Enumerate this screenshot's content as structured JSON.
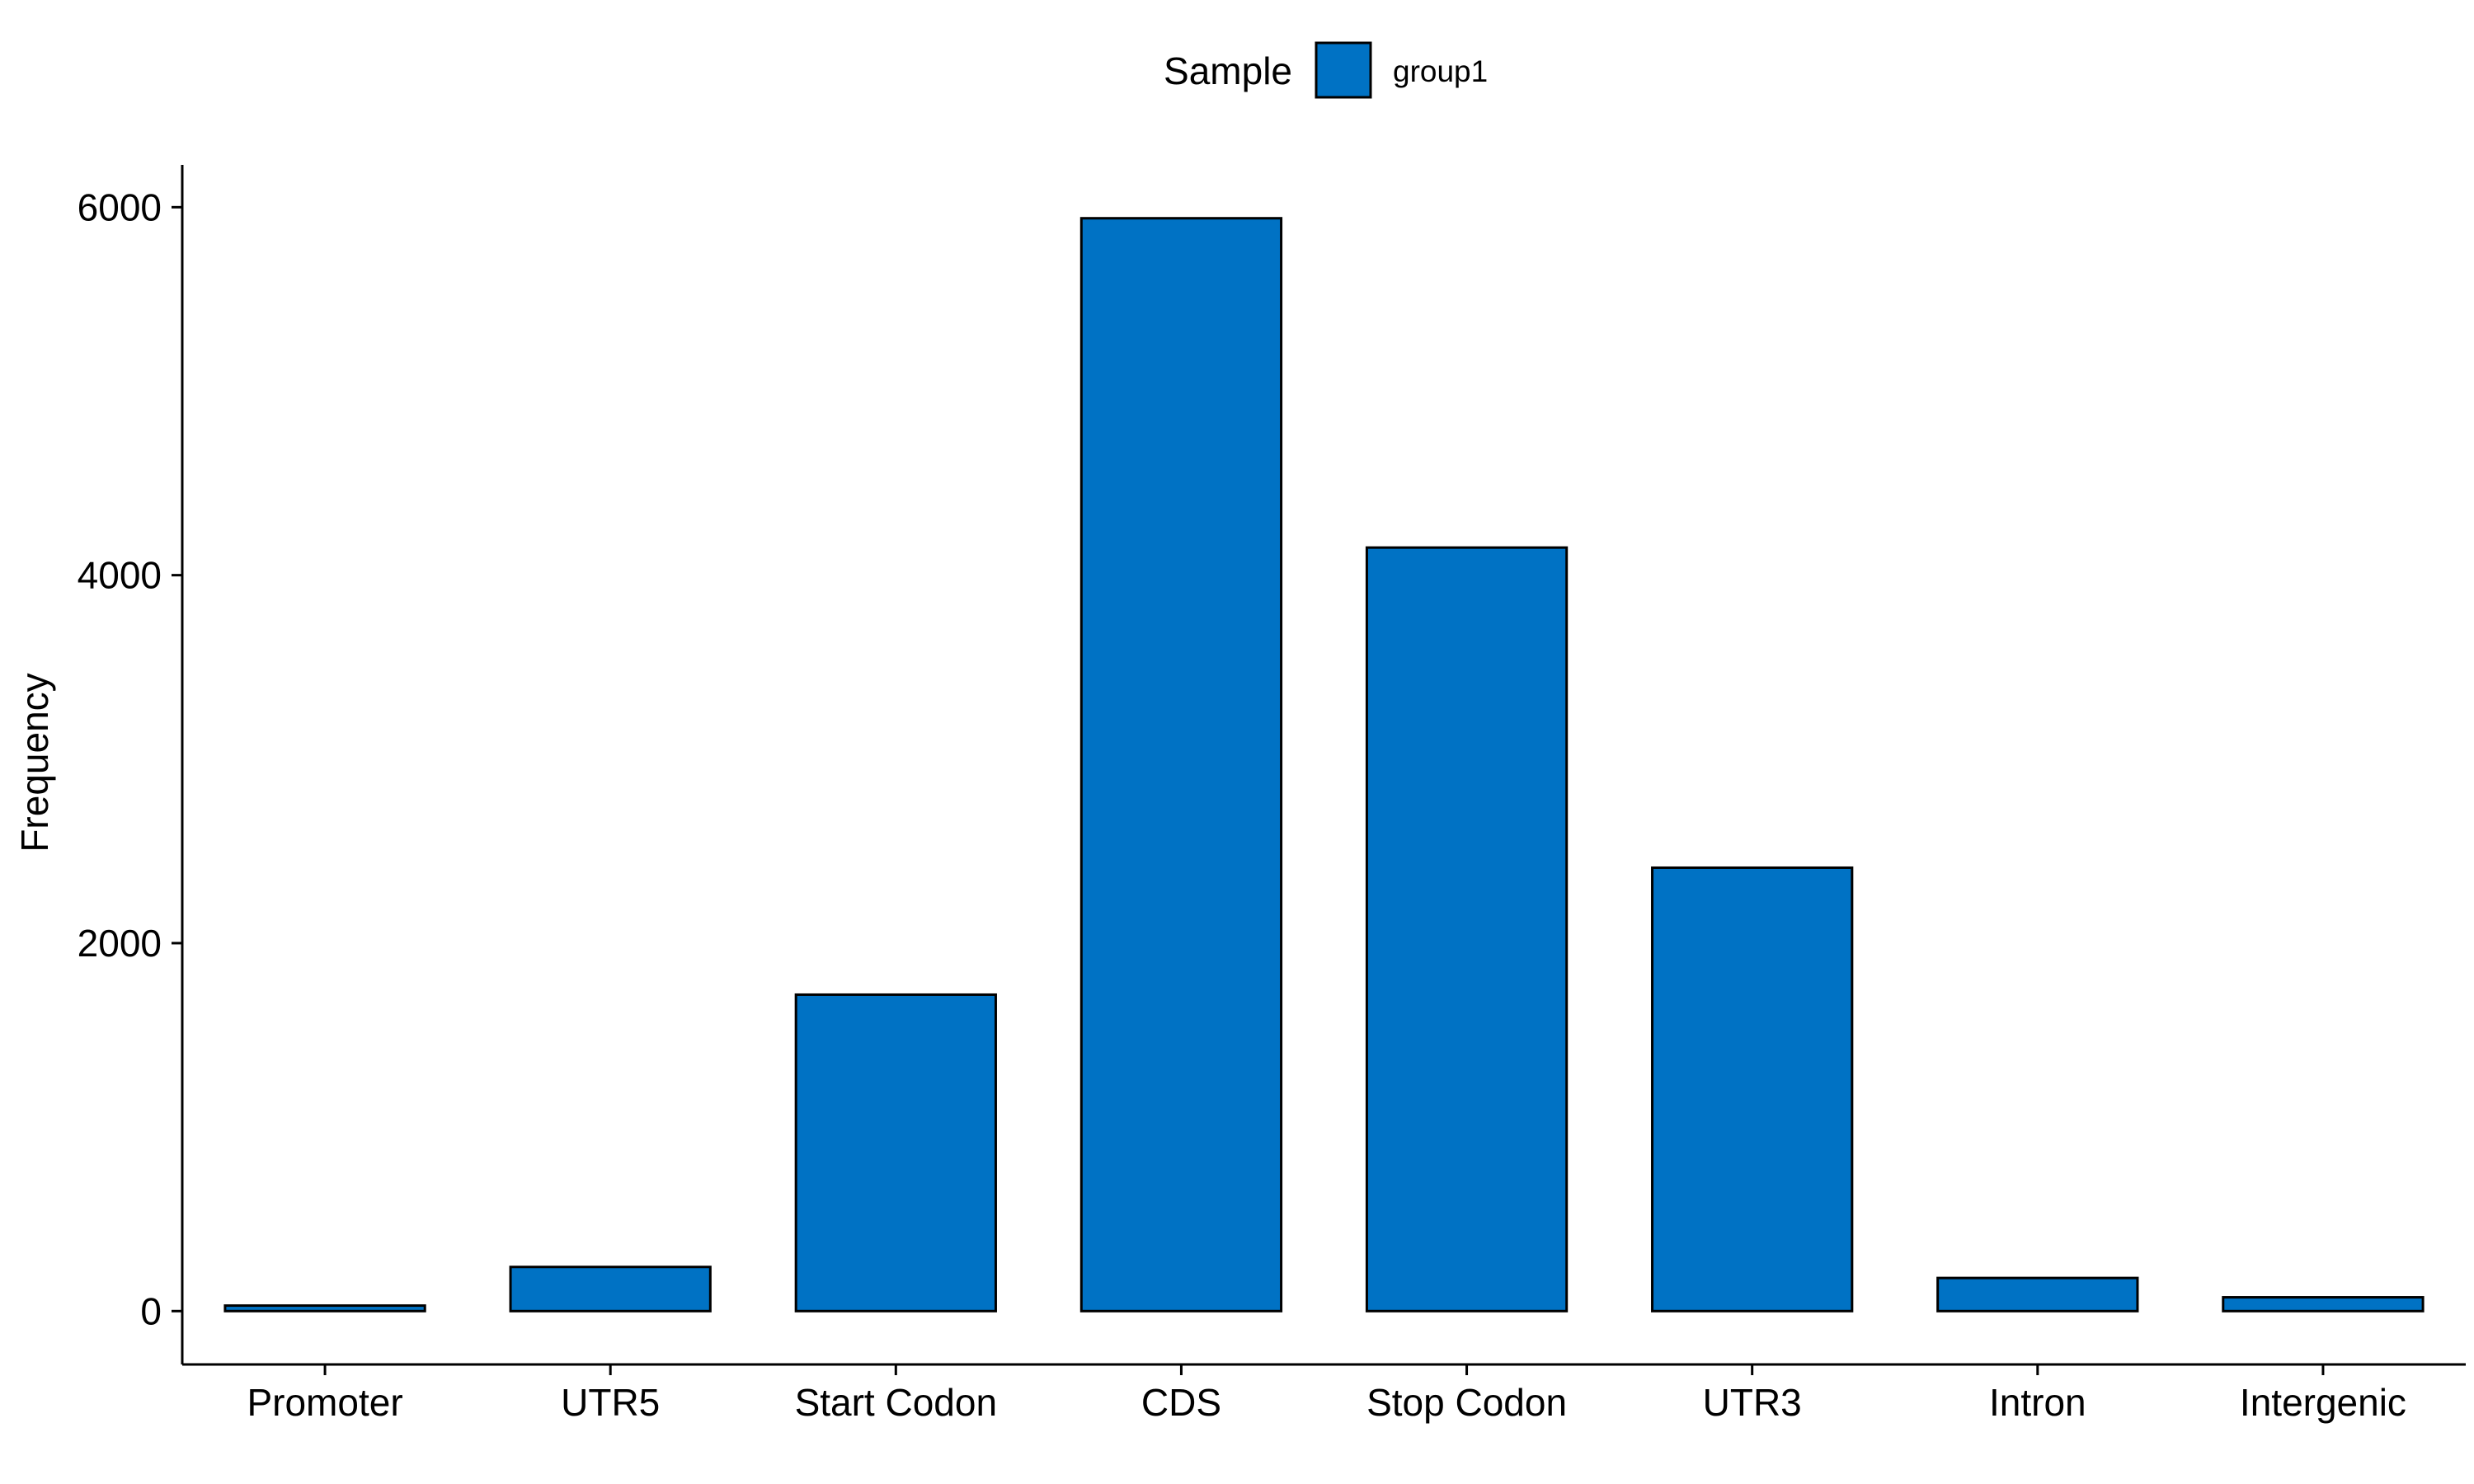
{
  "chart_data": {
    "type": "bar",
    "title": "",
    "xlabel": "",
    "ylabel": "Frequency",
    "categories": [
      "Promoter",
      "UTR5",
      "Start Codon",
      "CDS",
      "Stop Codon",
      "UTR3",
      "Intron",
      "Intergenic"
    ],
    "series": [
      {
        "name": "group1",
        "values": [
          30,
          240,
          1720,
          5940,
          4150,
          2410,
          180,
          75
        ]
      }
    ],
    "ylim": [
      -290,
      6230
    ],
    "yticks": [
      0,
      2000,
      4000,
      6000
    ],
    "grid": false,
    "legend": {
      "title": "Sample",
      "position": "top"
    },
    "colors": {
      "bar_fill": "#0072C4",
      "bar_stroke": "#000000",
      "axis": "#000000"
    }
  }
}
